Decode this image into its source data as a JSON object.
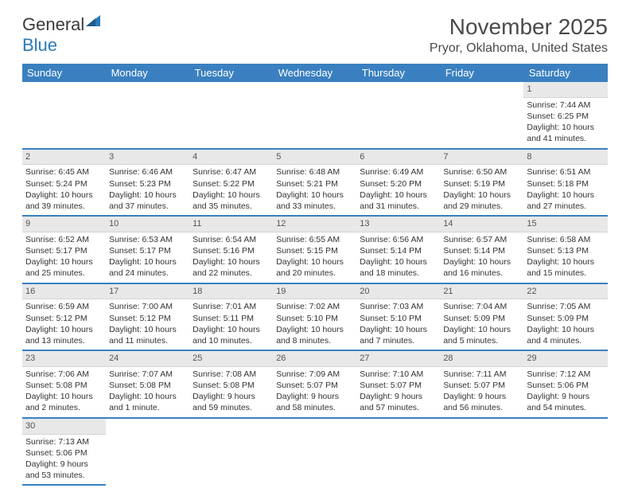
{
  "logo": {
    "part1": "General",
    "part2": "Blue"
  },
  "title": "November 2025",
  "location": "Pryor, Oklahoma, United States",
  "dayHeaders": [
    "Sunday",
    "Monday",
    "Tuesday",
    "Wednesday",
    "Thursday",
    "Friday",
    "Saturday"
  ],
  "colors": {
    "headerBg": "#3a80c0",
    "dayShade": "#e8e8e8"
  },
  "days": [
    {
      "n": "1",
      "sr": "7:44 AM",
      "ss": "6:25 PM",
      "dl": "10 hours and 41 minutes."
    },
    {
      "n": "2",
      "sr": "6:45 AM",
      "ss": "5:24 PM",
      "dl": "10 hours and 39 minutes."
    },
    {
      "n": "3",
      "sr": "6:46 AM",
      "ss": "5:23 PM",
      "dl": "10 hours and 37 minutes."
    },
    {
      "n": "4",
      "sr": "6:47 AM",
      "ss": "5:22 PM",
      "dl": "10 hours and 35 minutes."
    },
    {
      "n": "5",
      "sr": "6:48 AM",
      "ss": "5:21 PM",
      "dl": "10 hours and 33 minutes."
    },
    {
      "n": "6",
      "sr": "6:49 AM",
      "ss": "5:20 PM",
      "dl": "10 hours and 31 minutes."
    },
    {
      "n": "7",
      "sr": "6:50 AM",
      "ss": "5:19 PM",
      "dl": "10 hours and 29 minutes."
    },
    {
      "n": "8",
      "sr": "6:51 AM",
      "ss": "5:18 PM",
      "dl": "10 hours and 27 minutes."
    },
    {
      "n": "9",
      "sr": "6:52 AM",
      "ss": "5:17 PM",
      "dl": "10 hours and 25 minutes."
    },
    {
      "n": "10",
      "sr": "6:53 AM",
      "ss": "5:17 PM",
      "dl": "10 hours and 24 minutes."
    },
    {
      "n": "11",
      "sr": "6:54 AM",
      "ss": "5:16 PM",
      "dl": "10 hours and 22 minutes."
    },
    {
      "n": "12",
      "sr": "6:55 AM",
      "ss": "5:15 PM",
      "dl": "10 hours and 20 minutes."
    },
    {
      "n": "13",
      "sr": "6:56 AM",
      "ss": "5:14 PM",
      "dl": "10 hours and 18 minutes."
    },
    {
      "n": "14",
      "sr": "6:57 AM",
      "ss": "5:14 PM",
      "dl": "10 hours and 16 minutes."
    },
    {
      "n": "15",
      "sr": "6:58 AM",
      "ss": "5:13 PM",
      "dl": "10 hours and 15 minutes."
    },
    {
      "n": "16",
      "sr": "6:59 AM",
      "ss": "5:12 PM",
      "dl": "10 hours and 13 minutes."
    },
    {
      "n": "17",
      "sr": "7:00 AM",
      "ss": "5:12 PM",
      "dl": "10 hours and 11 minutes."
    },
    {
      "n": "18",
      "sr": "7:01 AM",
      "ss": "5:11 PM",
      "dl": "10 hours and 10 minutes."
    },
    {
      "n": "19",
      "sr": "7:02 AM",
      "ss": "5:10 PM",
      "dl": "10 hours and 8 minutes."
    },
    {
      "n": "20",
      "sr": "7:03 AM",
      "ss": "5:10 PM",
      "dl": "10 hours and 7 minutes."
    },
    {
      "n": "21",
      "sr": "7:04 AM",
      "ss": "5:09 PM",
      "dl": "10 hours and 5 minutes."
    },
    {
      "n": "22",
      "sr": "7:05 AM",
      "ss": "5:09 PM",
      "dl": "10 hours and 4 minutes."
    },
    {
      "n": "23",
      "sr": "7:06 AM",
      "ss": "5:08 PM",
      "dl": "10 hours and 2 minutes."
    },
    {
      "n": "24",
      "sr": "7:07 AM",
      "ss": "5:08 PM",
      "dl": "10 hours and 1 minute."
    },
    {
      "n": "25",
      "sr": "7:08 AM",
      "ss": "5:08 PM",
      "dl": "9 hours and 59 minutes."
    },
    {
      "n": "26",
      "sr": "7:09 AM",
      "ss": "5:07 PM",
      "dl": "9 hours and 58 minutes."
    },
    {
      "n": "27",
      "sr": "7:10 AM",
      "ss": "5:07 PM",
      "dl": "9 hours and 57 minutes."
    },
    {
      "n": "28",
      "sr": "7:11 AM",
      "ss": "5:07 PM",
      "dl": "9 hours and 56 minutes."
    },
    {
      "n": "29",
      "sr": "7:12 AM",
      "ss": "5:06 PM",
      "dl": "9 hours and 54 minutes."
    },
    {
      "n": "30",
      "sr": "7:13 AM",
      "ss": "5:06 PM",
      "dl": "9 hours and 53 minutes."
    }
  ],
  "startOffset": 6,
  "labels": {
    "sunrise": "Sunrise: ",
    "sunset": "Sunset: ",
    "daylight": "Daylight: "
  }
}
